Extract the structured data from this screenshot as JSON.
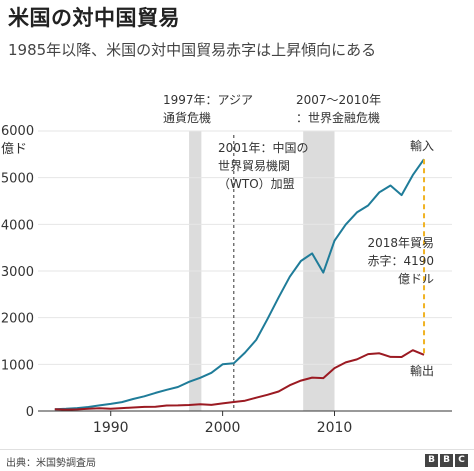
{
  "title": "米国の対中国貿易",
  "subtitle": "1985年以降、米国の対中国貿易赤字は上昇傾向にある",
  "source": "出典：米国勢調査局",
  "logo": [
    "B",
    "B",
    "C"
  ],
  "colors": {
    "imports": "#1f7c99",
    "exports": "#9b1a22",
    "deficit": "#f0b323",
    "band": "#dcdcdc",
    "axis": "#333333",
    "grid": "#e6e6e6"
  },
  "chart_data": {
    "type": "line",
    "title": "米国の対中国貿易",
    "ylabel_unit": [
      "6000",
      "億ド"
    ],
    "xlim": [
      1983.5,
      2020.5
    ],
    "ylim": [
      0,
      6000
    ],
    "x_ticks": [
      1990,
      2000,
      2010
    ],
    "y_ticks": [
      0,
      1000,
      2000,
      3000,
      4000,
      5000,
      6000
    ],
    "grid": true,
    "x": [
      1985,
      1986,
      1987,
      1988,
      1989,
      1990,
      1991,
      1992,
      1993,
      1994,
      1995,
      1996,
      1997,
      1998,
      1999,
      2000,
      2001,
      2002,
      2003,
      2004,
      2005,
      2006,
      2007,
      2008,
      2009,
      2010,
      2011,
      2012,
      2013,
      2014,
      2015,
      2016,
      2017,
      2018
    ],
    "series": [
      {
        "name": "輸入",
        "key": "imports",
        "values": [
          39,
          47,
          63,
          85,
          120,
          152,
          190,
          257,
          315,
          387,
          455,
          515,
          626,
          712,
          818,
          1000,
          1023,
          1252,
          1524,
          1967,
          2434,
          2878,
          3215,
          3378,
          2965,
          3650,
          3994,
          4256,
          4404,
          4686,
          4832,
          4627,
          5055,
          5395
        ]
      },
      {
        "name": "輸出",
        "key": "exports",
        "values": [
          38,
          31,
          35,
          50,
          58,
          48,
          63,
          75,
          88,
          93,
          117,
          120,
          128,
          143,
          131,
          163,
          192,
          221,
          284,
          347,
          418,
          553,
          652,
          715,
          704,
          919,
          1042,
          1105,
          1219,
          1237,
          1160,
          1157,
          1303,
          1205
        ]
      }
    ],
    "bands": [
      {
        "from": 1997,
        "to": 1998.1,
        "label": [
          "1997年：アジア",
          "通貨危機"
        ]
      },
      {
        "from": 2007.2,
        "to": 2010,
        "label": [
          "2007～2010年",
          "：世界金融危機"
        ]
      }
    ],
    "vline": {
      "x": 2001,
      "label": [
        "2001年：中国の",
        "世界貿易機関",
        "（WTO）加盟"
      ]
    },
    "deficit": {
      "year": 2018,
      "label": [
        "2018年貿易",
        "赤字：4190",
        "億ドル"
      ]
    }
  }
}
